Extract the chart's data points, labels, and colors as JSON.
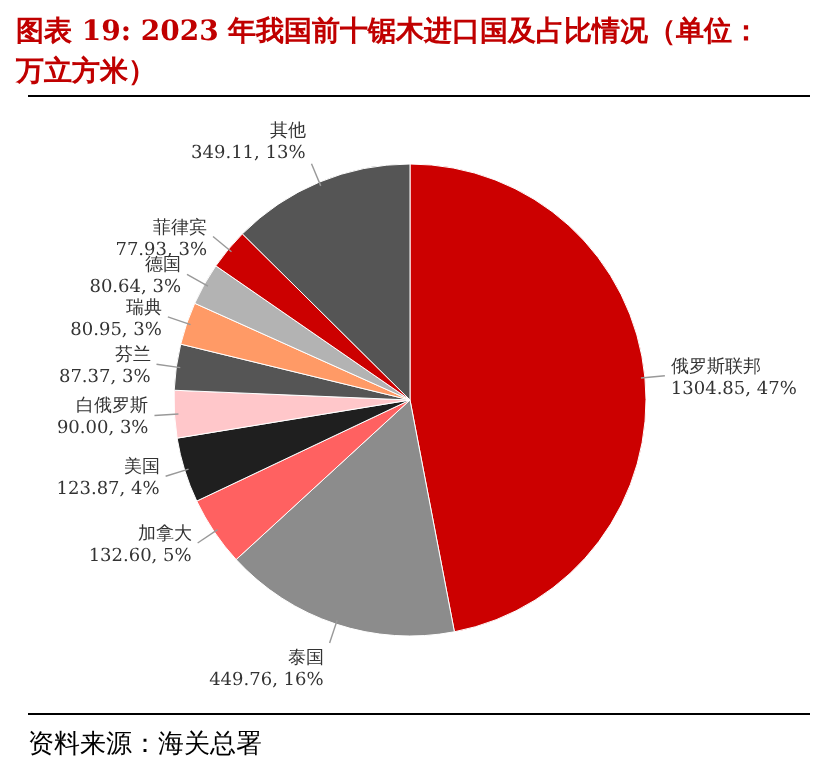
{
  "chart_data": {
    "type": "pie",
    "title": "图表 19: 2023 年我国前十锯木进口国及占比情况（单位：万立方米）",
    "categories": [
      "俄罗斯联邦",
      "泰国",
      "加拿大",
      "美国",
      "白俄罗斯",
      "芬兰",
      "瑞典",
      "德国",
      "菲律宾",
      "其他"
    ],
    "values": [
      1304.85,
      449.76,
      132.6,
      123.87,
      90.0,
      87.37,
      80.95,
      80.64,
      77.93,
      349.11
    ],
    "value_labels": [
      "1304.85, 47%",
      "449.76, 16%",
      "132.60, 5%",
      "123.87, 4%",
      "90.00, 3%",
      "87.37, 3%",
      "80.95, 3%",
      "80.64, 3%",
      "77.93, 3%",
      "349.11, 13%"
    ],
    "colors": [
      "#cc0000",
      "#8c8c8c",
      "#ff6161",
      "#1f1f1f",
      "#ffc7ca",
      "#555555",
      "#ff9a66",
      "#b3b3b3",
      "#cc0000",
      "#555555"
    ],
    "annotations": [
      "资料来源：海关总署"
    ]
  }
}
